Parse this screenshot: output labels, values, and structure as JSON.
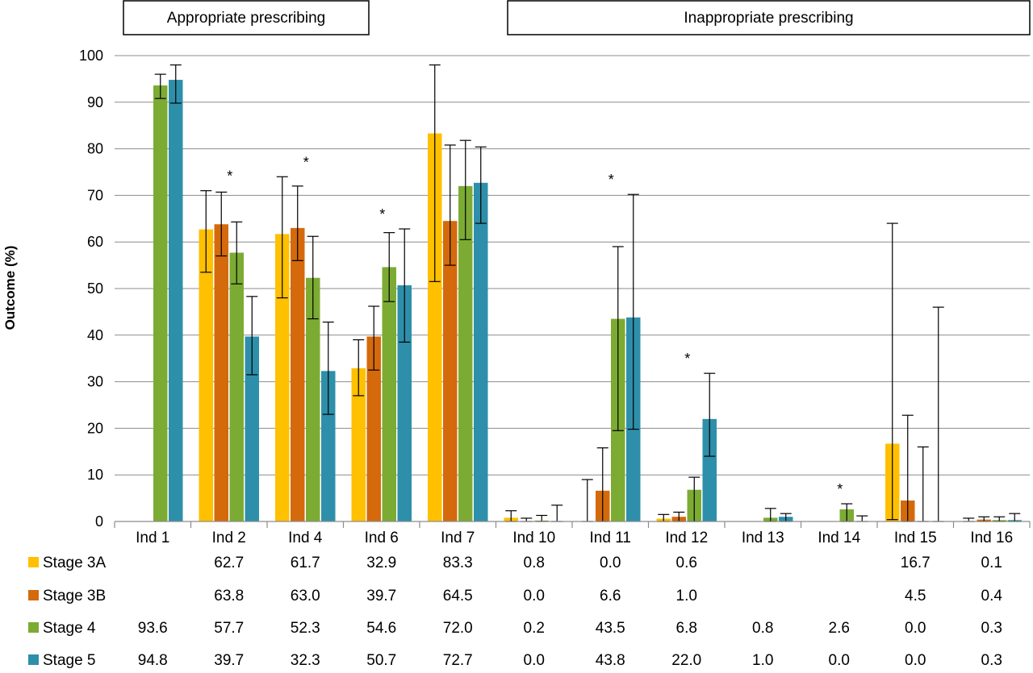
{
  "chart_data": {
    "type": "bar",
    "ylabel": "Outcome (%)",
    "ylim": [
      0,
      100
    ],
    "yticks": [
      0,
      10,
      20,
      30,
      40,
      50,
      60,
      70,
      80,
      90,
      100
    ],
    "grid": true,
    "groups": [
      {
        "label": "Appropriate prescribing",
        "categories": [
          "Ind 1",
          "Ind 2",
          "Ind 4",
          "Ind 6",
          "Ind 7"
        ]
      },
      {
        "label": "Inappropriate prescribing",
        "categories": [
          "Ind 10",
          "Ind 11",
          "Ind 12",
          "Ind 13",
          "Ind 14",
          "Ind 15",
          "Ind 16"
        ]
      }
    ],
    "categories": [
      "Ind 1",
      "Ind 2",
      "Ind 4",
      "Ind 6",
      "Ind 7",
      "Ind 10",
      "Ind 11",
      "Ind 12",
      "Ind 13",
      "Ind 14",
      "Ind 15",
      "Ind 16"
    ],
    "significance_marker": "*",
    "significant_categories": [
      "Ind 2",
      "Ind 4",
      "Ind 6",
      "Ind 11",
      "Ind 12",
      "Ind 14"
    ],
    "series": [
      {
        "name": "Stage 3A",
        "color": "#FFC000",
        "values": [
          null,
          62.7,
          61.7,
          32.9,
          83.3,
          0.8,
          0.0,
          0.6,
          null,
          null,
          16.7,
          0.1
        ],
        "labels": [
          "",
          "62.7",
          "61.7",
          "32.9",
          "83.3",
          "0.8",
          "0.0",
          "0.6",
          "",
          "",
          "16.7",
          "0.1"
        ],
        "error_low": [
          null,
          53.5,
          48.0,
          27.0,
          51.5,
          0.0,
          0.0,
          0.0,
          null,
          null,
          0.4,
          0.0
        ],
        "error_high": [
          null,
          71.0,
          74.0,
          39.0,
          98.0,
          2.3,
          9.0,
          1.5,
          null,
          null,
          64.0,
          0.7
        ]
      },
      {
        "name": "Stage 3B",
        "color": "#D46A0C",
        "values": [
          null,
          63.8,
          63.0,
          39.7,
          64.5,
          0.0,
          6.6,
          1.0,
          null,
          null,
          4.5,
          0.4
        ],
        "labels": [
          "",
          "63.8",
          "63.0",
          "39.7",
          "64.5",
          "0.0",
          "6.6",
          "1.0",
          "",
          "",
          "4.5",
          "0.4"
        ],
        "error_low": [
          null,
          57.0,
          56.0,
          32.5,
          55.0,
          0.0,
          0.0,
          0.0,
          null,
          null,
          0.0,
          0.0
        ],
        "error_high": [
          null,
          70.7,
          72.0,
          46.2,
          80.8,
          0.7,
          15.8,
          2.0,
          null,
          null,
          22.8,
          1.0
        ]
      },
      {
        "name": "Stage 4",
        "color": "#7CAB34",
        "values": [
          93.6,
          57.7,
          52.3,
          54.6,
          72.0,
          0.2,
          43.5,
          6.8,
          0.8,
          2.6,
          0.0,
          0.3
        ],
        "labels": [
          "93.6",
          "57.7",
          "52.3",
          "54.6",
          "72.0",
          "0.2",
          "43.5",
          "6.8",
          "0.8",
          "2.6",
          "0.0",
          "0.3"
        ],
        "error_low": [
          90.8,
          51.0,
          43.5,
          47.2,
          60.5,
          0.0,
          19.5,
          0.0,
          0.0,
          0.0,
          0.0,
          0.0
        ],
        "error_high": [
          96.0,
          64.3,
          61.2,
          62.0,
          81.8,
          1.3,
          59.0,
          9.5,
          2.8,
          3.8,
          16.0,
          1.0
        ]
      },
      {
        "name": "Stage 5",
        "color": "#2E8FAA",
        "values": [
          94.8,
          39.7,
          32.3,
          50.7,
          72.7,
          0.0,
          43.8,
          22.0,
          1.0,
          0.0,
          0.0,
          0.3
        ],
        "labels": [
          "94.8",
          "39.7",
          "32.3",
          "50.7",
          "72.7",
          "0.0",
          "43.8",
          "22.0",
          "1.0",
          "0.0",
          "0.0",
          "0.3"
        ],
        "error_low": [
          89.8,
          31.5,
          23.0,
          38.5,
          64.0,
          0.0,
          19.8,
          14.0,
          0.0,
          0.0,
          0.0,
          0.0
        ],
        "error_high": [
          98.0,
          48.3,
          42.8,
          62.8,
          80.4,
          3.5,
          70.2,
          31.8,
          1.7,
          1.2,
          46.0,
          1.7
        ]
      }
    ]
  }
}
